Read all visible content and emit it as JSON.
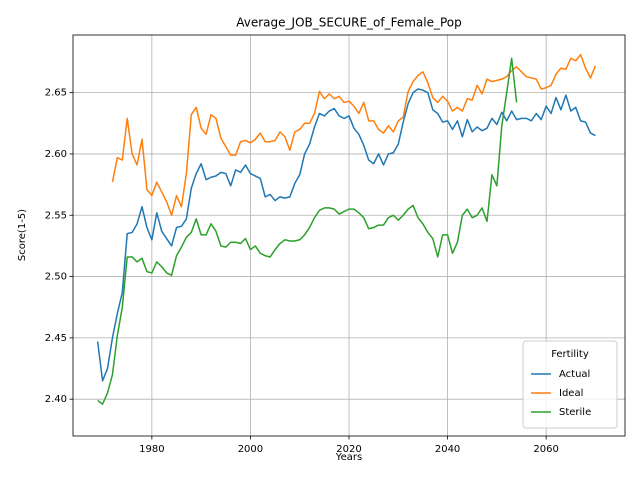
{
  "chart_data": {
    "type": "line",
    "title": "Average_JOB_SECURE_of_Female_Pop",
    "x_label": "Years",
    "y_label": "Score(1-5)",
    "x": [
      1969,
      1970,
      1971,
      1972,
      1973,
      1974,
      1975,
      1976,
      1977,
      1978,
      1979,
      1980,
      1981,
      1982,
      1983,
      1984,
      1985,
      1986,
      1987,
      1988,
      1989,
      1990,
      1991,
      1992,
      1993,
      1994,
      1995,
      1996,
      1997,
      1998,
      1999,
      2000,
      2001,
      2002,
      2003,
      2004,
      2005,
      2006,
      2007,
      2008,
      2009,
      2010,
      2011,
      2012,
      2013,
      2014,
      2015,
      2016,
      2017,
      2018,
      2019,
      2020,
      2021,
      2022,
      2023,
      2024,
      2025,
      2026,
      2027,
      2028,
      2029,
      2030,
      2031,
      2032,
      2033,
      2034,
      2035,
      2036,
      2037,
      2038,
      2039,
      2040,
      2041,
      2042,
      2043,
      2044,
      2045,
      2046,
      2047,
      2048,
      2049,
      2050,
      2051,
      2052,
      2053,
      2054,
      2055,
      2056,
      2057,
      2058,
      2059,
      2060,
      2061,
      2062,
      2063,
      2064,
      2065,
      2066,
      2067,
      2068,
      2069,
      2070
    ],
    "series": [
      {
        "name": "Actual",
        "color": "#1f77b4",
        "values": [
          2.447,
          2.415,
          2.425,
          2.45,
          2.47,
          2.487,
          2.535,
          2.536,
          2.543,
          2.557,
          2.54,
          2.53,
          2.552,
          2.537,
          2.531,
          2.525,
          2.54,
          2.541,
          2.547,
          2.572,
          2.584,
          2.592,
          2.579,
          2.581,
          2.582,
          2.585,
          2.584,
          2.574,
          2.587,
          2.585,
          2.591,
          2.584,
          2.582,
          2.58,
          2.565,
          2.567,
          2.562,
          2.565,
          2.564,
          2.565,
          2.576,
          2.583,
          2.6,
          2.608,
          2.622,
          2.633,
          2.631,
          2.635,
          2.637,
          2.631,
          2.629,
          2.631,
          2.621,
          2.616,
          2.607,
          2.595,
          2.592,
          2.6,
          2.591,
          2.6,
          2.601,
          2.608,
          2.626,
          2.641,
          2.65,
          2.653,
          2.652,
          2.65,
          2.636,
          2.633,
          2.626,
          2.627,
          2.62,
          2.627,
          2.614,
          2.628,
          2.618,
          2.622,
          2.619,
          2.621,
          2.629,
          2.624,
          2.634,
          2.627,
          2.635,
          2.628,
          2.629,
          2.629,
          2.627,
          2.633,
          2.628,
          2.639,
          2.633,
          2.646,
          2.636,
          2.648,
          2.635,
          2.638,
          2.627,
          2.626,
          2.617,
          2.615
        ]
      },
      {
        "name": "Ideal",
        "color": "#ff7f0e",
        "values": [
          null,
          null,
          null,
          2.577,
          2.597,
          2.595,
          2.629,
          2.6,
          2.591,
          2.612,
          2.571,
          2.566,
          2.577,
          2.569,
          2.561,
          2.55,
          2.566,
          2.557,
          2.584,
          2.632,
          2.638,
          2.621,
          2.616,
          2.632,
          2.629,
          2.613,
          2.606,
          2.599,
          2.599,
          2.61,
          2.611,
          2.609,
          2.612,
          2.617,
          2.61,
          2.61,
          2.611,
          2.618,
          2.614,
          2.603,
          2.618,
          2.62,
          2.625,
          2.625,
          2.633,
          2.651,
          2.645,
          2.649,
          2.645,
          2.647,
          2.642,
          2.643,
          2.639,
          2.633,
          2.642,
          2.627,
          2.627,
          2.62,
          2.617,
          2.623,
          2.618,
          2.627,
          2.63,
          2.651,
          2.659,
          2.664,
          2.667,
          2.658,
          2.646,
          2.642,
          2.647,
          2.643,
          2.635,
          2.638,
          2.635,
          2.645,
          2.644,
          2.656,
          2.649,
          2.661,
          2.659,
          2.66,
          2.661,
          2.663,
          2.668,
          2.671,
          2.667,
          2.663,
          2.662,
          2.661,
          2.653,
          2.654,
          2.656,
          2.665,
          2.67,
          2.669,
          2.678,
          2.676,
          2.681,
          2.67,
          2.662,
          2.672
        ]
      },
      {
        "name": "Sterile",
        "color": "#2ca02c",
        "values": [
          2.399,
          2.396,
          2.405,
          2.42,
          2.452,
          2.475,
          2.516,
          2.516,
          2.512,
          2.515,
          2.504,
          2.503,
          2.512,
          2.508,
          2.503,
          2.501,
          2.517,
          2.524,
          2.532,
          2.536,
          2.547,
          2.534,
          2.534,
          2.543,
          2.537,
          2.525,
          2.524,
          2.528,
          2.528,
          2.527,
          2.531,
          2.522,
          2.525,
          2.519,
          2.517,
          2.516,
          2.522,
          2.527,
          2.53,
          2.529,
          2.529,
          2.53,
          2.534,
          2.54,
          2.548,
          2.554,
          2.556,
          2.556,
          2.555,
          2.551,
          2.553,
          2.555,
          2.555,
          2.552,
          2.548,
          2.539,
          2.54,
          2.542,
          2.542,
          2.548,
          2.55,
          2.546,
          2.55,
          2.555,
          2.558,
          2.548,
          2.543,
          2.536,
          2.531,
          2.516,
          2.534,
          2.534,
          2.519,
          2.528,
          2.55,
          2.555,
          2.548,
          2.55,
          2.556,
          2.545,
          2.583,
          2.574,
          2.623,
          2.65,
          2.678,
          2.642,
          null,
          null,
          null,
          null,
          null,
          null,
          null,
          null,
          null,
          null,
          null,
          null,
          null,
          null,
          null,
          null
        ]
      }
    ],
    "xlim": [
      1964,
      2076
    ],
    "ylim": [
      2.37,
      2.697
    ],
    "xticks": [
      1980,
      2000,
      2020,
      2040,
      2060
    ],
    "yticks": [
      {
        "value": 2.4,
        "label": "2.40"
      },
      {
        "value": 2.45,
        "label": "2.45"
      },
      {
        "value": 2.5,
        "label": "2.50"
      },
      {
        "value": 2.55,
        "label": "2.55"
      },
      {
        "value": 2.6,
        "label": "2.60"
      },
      {
        "value": 2.65,
        "label": "2.65"
      }
    ],
    "grid": true,
    "legend": {
      "title": "Fertility",
      "position": "lower right"
    }
  }
}
